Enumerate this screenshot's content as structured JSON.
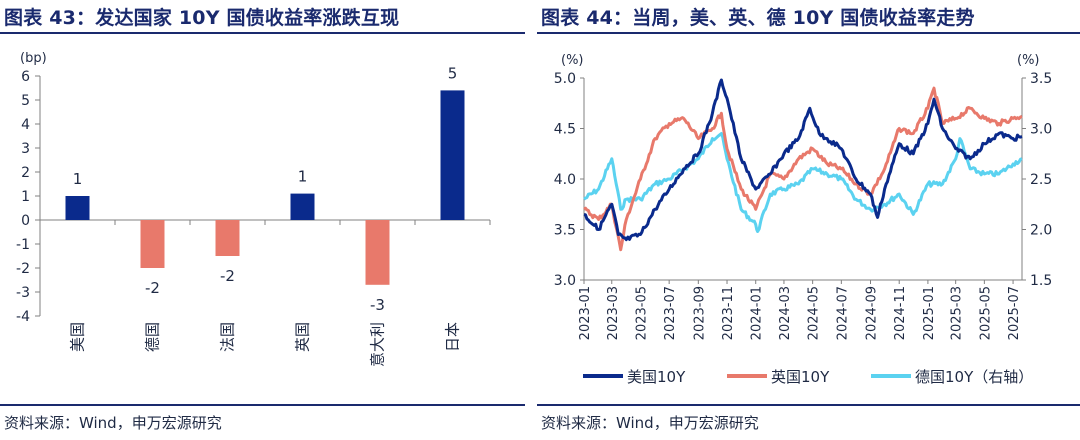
{
  "left": {
    "title": "图表 43：发达国家 10Y 国债收益率涨跌互现",
    "source": "资料来源：Wind，申万宏源研究",
    "chart_data": {
      "type": "bar",
      "unit_label": "(bp)",
      "categories": [
        "美国",
        "德国",
        "法国",
        "英国",
        "意大利",
        "日本"
      ],
      "values": [
        1.0,
        -2.0,
        -1.5,
        1.1,
        -2.7,
        5.4
      ],
      "value_labels": [
        "1",
        "-2",
        "-2",
        "1",
        "-3",
        "5"
      ],
      "ylim": [
        -4,
        6
      ],
      "yticks": [
        6,
        5,
        4,
        3,
        2,
        1,
        0,
        -1,
        -2,
        -3,
        -4
      ],
      "colors": {
        "positive": "#0a2a8c",
        "negative": "#e8796b"
      },
      "grid": false
    }
  },
  "right": {
    "title": "图表 44：当周，美、英、德 10Y 国债收益率走势",
    "source": "资料来源：Wind，申万宏源研究",
    "chart_data": {
      "type": "line",
      "left_unit": "(%)",
      "right_unit": "(%)",
      "ylim_left": [
        3.0,
        5.0
      ],
      "ylim_right": [
        1.5,
        3.5
      ],
      "yticks_left": [
        "5.0",
        "4.5",
        "4.0",
        "3.5",
        "3.0"
      ],
      "yticks_right": [
        "3.5",
        "3.0",
        "2.5",
        "2.0",
        "1.5"
      ],
      "xticks": [
        "2023-01",
        "2023-03",
        "2023-05",
        "2023-07",
        "2023-09",
        "2023-11",
        "2024-01",
        "2024-03",
        "2024-05",
        "2024-07",
        "2024-09",
        "2024-11",
        "2025-01",
        "2025-03",
        "2025-05",
        "2025-07"
      ],
      "series": [
        {
          "name": "美国10Y",
          "axis": "left",
          "color": "#0a2a8c",
          "x": [
            "2023-01-01",
            "2023-02-01",
            "2023-03-01",
            "2023-03-15",
            "2023-04-01",
            "2023-05-01",
            "2023-06-01",
            "2023-07-01",
            "2023-08-01",
            "2023-09-01",
            "2023-10-01",
            "2023-10-20",
            "2023-11-01",
            "2023-12-01",
            "2024-01-01",
            "2024-02-01",
            "2024-03-01",
            "2024-04-01",
            "2024-04-25",
            "2024-05-15",
            "2024-06-01",
            "2024-07-01",
            "2024-08-01",
            "2024-09-01",
            "2024-09-16",
            "2024-10-01",
            "2024-11-01",
            "2024-12-01",
            "2025-01-01",
            "2025-01-14",
            "2025-02-01",
            "2025-03-01",
            "2025-04-01",
            "2025-05-01",
            "2025-06-01",
            "2025-07-01",
            "2025-07-20"
          ],
          "y": [
            3.65,
            3.5,
            3.75,
            3.45,
            3.4,
            3.45,
            3.7,
            3.9,
            4.1,
            4.25,
            4.65,
            4.98,
            4.8,
            4.2,
            3.9,
            4.05,
            4.25,
            4.4,
            4.7,
            4.45,
            4.4,
            4.3,
            4.0,
            3.85,
            3.62,
            3.9,
            4.35,
            4.25,
            4.55,
            4.79,
            4.5,
            4.3,
            4.2,
            4.35,
            4.45,
            4.4,
            4.42
          ]
        },
        {
          "name": "英国10Y",
          "axis": "left",
          "color": "#e8796b",
          "x": [
            "2023-01-01",
            "2023-02-01",
            "2023-03-01",
            "2023-03-20",
            "2023-04-01",
            "2023-05-01",
            "2023-06-01",
            "2023-07-01",
            "2023-08-01",
            "2023-09-01",
            "2023-10-01",
            "2023-10-20",
            "2023-11-01",
            "2023-12-01",
            "2024-01-01",
            "2024-02-01",
            "2024-03-01",
            "2024-04-01",
            "2024-05-01",
            "2024-06-01",
            "2024-07-01",
            "2024-08-01",
            "2024-09-01",
            "2024-10-01",
            "2024-11-01",
            "2024-12-01",
            "2025-01-01",
            "2025-01-14",
            "2025-02-01",
            "2025-03-01",
            "2025-04-01",
            "2025-05-01",
            "2025-06-01",
            "2025-07-01",
            "2025-07-20"
          ],
          "y": [
            3.7,
            3.6,
            3.75,
            3.3,
            3.6,
            4.0,
            4.4,
            4.55,
            4.6,
            4.4,
            4.5,
            4.65,
            4.3,
            3.9,
            3.7,
            4.05,
            4.0,
            4.2,
            4.3,
            4.15,
            4.1,
            3.95,
            3.85,
            4.1,
            4.5,
            4.45,
            4.7,
            4.9,
            4.55,
            4.6,
            4.7,
            4.6,
            4.55,
            4.6,
            4.62
          ]
        },
        {
          "name": "德国10Y（右轴）",
          "axis": "right",
          "color": "#5bd2f0",
          "x": [
            "2023-01-01",
            "2023-02-01",
            "2023-03-01",
            "2023-03-20",
            "2023-04-01",
            "2023-05-01",
            "2023-06-01",
            "2023-07-01",
            "2023-08-01",
            "2023-09-01",
            "2023-10-01",
            "2023-10-20",
            "2023-11-01",
            "2023-12-01",
            "2024-01-01",
            "2024-01-05",
            "2024-02-01",
            "2024-03-01",
            "2024-04-01",
            "2024-05-01",
            "2024-06-01",
            "2024-07-01",
            "2024-08-01",
            "2024-09-01",
            "2024-10-01",
            "2024-11-01",
            "2024-12-01",
            "2025-01-01",
            "2025-02-01",
            "2025-03-01",
            "2025-03-10",
            "2025-04-01",
            "2025-05-01",
            "2025-06-01",
            "2025-07-01",
            "2025-07-20"
          ],
          "y": [
            2.3,
            2.4,
            2.7,
            2.2,
            2.3,
            2.3,
            2.45,
            2.5,
            2.6,
            2.7,
            2.9,
            2.95,
            2.7,
            2.2,
            2.05,
            1.98,
            2.35,
            2.4,
            2.45,
            2.6,
            2.55,
            2.5,
            2.3,
            2.2,
            2.25,
            2.35,
            2.15,
            2.45,
            2.45,
            2.7,
            2.9,
            2.6,
            2.55,
            2.55,
            2.65,
            2.7
          ]
        }
      ],
      "legend_position": "bottom"
    }
  }
}
